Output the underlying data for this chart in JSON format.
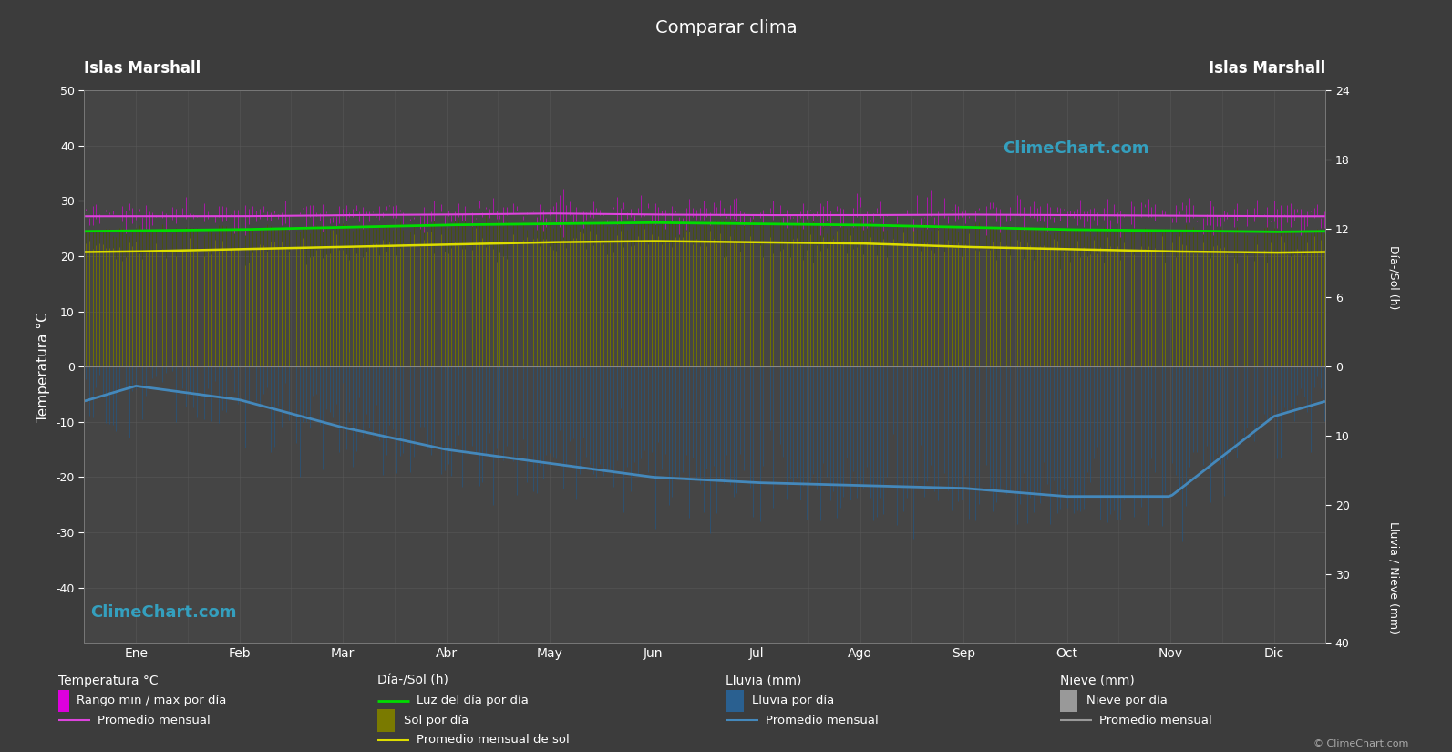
{
  "title": "Comparar clima",
  "left_label_top": "Islas Marshall",
  "right_label_top": "Islas Marshall",
  "xlabel_months": [
    "Ene",
    "Feb",
    "Mar",
    "Abr",
    "May",
    "Jun",
    "Jul",
    "Ago",
    "Sep",
    "Oct",
    "Nov",
    "Dic"
  ],
  "ylabel_left": "Temperatura °C",
  "ylabel_right_top": "Día-/Sol (h)",
  "ylabel_right_bottom": "Lluvia / Nieve (mm)",
  "ylim_left": [
    -50,
    50
  ],
  "background_color": "#3c3c3c",
  "plot_bg_color": "#454545",
  "grid_color": "#5a5a5a",
  "temp_max_monthly": [
    28.2,
    28.2,
    28.4,
    28.5,
    28.7,
    28.5,
    28.4,
    28.4,
    28.5,
    28.4,
    28.3,
    28.2
  ],
  "temp_min_monthly": [
    26.5,
    26.5,
    26.7,
    26.8,
    27.0,
    26.9,
    26.8,
    26.7,
    26.7,
    26.6,
    26.6,
    26.5
  ],
  "temp_avg_monthly": [
    27.2,
    27.2,
    27.4,
    27.5,
    27.7,
    27.5,
    27.4,
    27.4,
    27.5,
    27.4,
    27.3,
    27.2
  ],
  "daylight_monthly": [
    11.8,
    11.9,
    12.1,
    12.3,
    12.4,
    12.5,
    12.4,
    12.3,
    12.1,
    11.9,
    11.8,
    11.7
  ],
  "sunshine_monthly": [
    10.0,
    10.2,
    10.4,
    10.6,
    10.8,
    10.9,
    10.8,
    10.7,
    10.4,
    10.2,
    10.0,
    9.9
  ],
  "precip_monthly_curve": [
    -3.5,
    -6.0,
    -11.0,
    -15.0,
    -17.5,
    -20.0,
    -21.0,
    -21.5,
    -22.0,
    -23.5,
    -23.5,
    -9.0
  ],
  "hr_to_c_scale": 2.0833,
  "mm_per_c_scale": 0.8,
  "temp_max_daily_noise": 1.2,
  "temp_min_daily_noise": 1.2,
  "daylight_noise": 0.25,
  "sunshine_noise": 0.6,
  "precip_noise": 4.0,
  "color_magenta_band": "#dd00dd",
  "color_magenta_avg": "#dd44dd",
  "color_green_line": "#00dd00",
  "color_yellow_line": "#dddd00",
  "color_blue_precip": "#2a6090",
  "color_blue_precip_bars": "#255580",
  "color_blue_curve": "#4488bb",
  "color_snow_bar": "#888888",
  "color_sunshine_bar": "#7a7a00",
  "color_daylight_bar": "#4a5500",
  "watermark_color": "#33aacc",
  "watermark_text": "ClimeChart.com",
  "days_per_month": [
    31,
    28,
    31,
    30,
    31,
    30,
    31,
    31,
    30,
    31,
    30,
    31
  ],
  "legend": {
    "temp_col_title": "Temperatura °C",
    "temp_item1": "Rango min / max por día",
    "temp_item2": "Promedio mensual",
    "sol_col_title": "Día-/Sol (h)",
    "sol_item1": "Luz del día por día",
    "sol_item2": "Sol por día",
    "sol_item3": "Promedio mensual de sol",
    "rain_col_title": "Lluvia (mm)",
    "rain_item1": "Lluvia por día",
    "rain_item2": "Promedio mensual",
    "snow_col_title": "Nieve (mm)",
    "snow_item1": "Nieve por día",
    "snow_item2": "Promedio mensual"
  }
}
